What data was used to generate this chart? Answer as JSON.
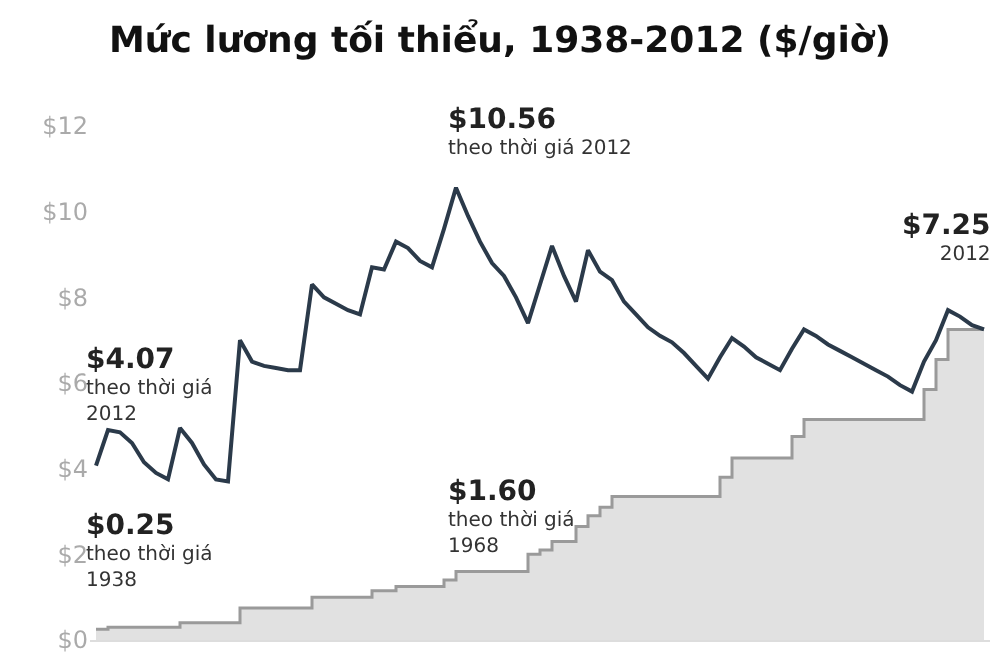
{
  "chart_data": {
    "type": "line",
    "title": "Mức lương tối thiểu, 1938-2012 ($/giờ)",
    "categories": [
      null,
      null,
      null,
      null,
      null,
      null,
      null,
      null,
      null,
      null,
      null,
      null,
      null,
      null,
      null,
      null,
      null,
      null,
      null,
      null,
      null,
      null,
      null,
      null,
      null,
      null,
      null,
      null,
      null,
      null,
      null,
      null,
      null,
      null,
      null,
      null,
      null,
      null,
      null,
      null,
      null,
      null,
      null,
      null,
      null,
      null,
      null,
      null,
      null,
      null,
      null,
      null,
      null,
      null,
      null,
      null,
      null,
      null,
      null,
      null,
      null,
      null,
      null,
      null,
      null,
      null,
      null,
      null,
      null,
      null,
      null,
      null,
      null,
      null,
      null
    ],
    "series": [
      {
        "color": "#2b3a4a",
        "values": [
          4.07,
          4.9,
          4.85,
          4.6,
          4.15,
          3.9,
          3.75,
          4.95,
          4.6,
          4.1,
          3.75,
          3.7,
          7.0,
          6.5,
          6.4,
          6.35,
          6.3,
          6.3,
          8.3,
          8.0,
          7.85,
          7.7,
          7.6,
          8.7,
          8.65,
          9.3,
          9.15,
          8.85,
          8.7,
          9.6,
          10.56,
          9.9,
          9.3,
          8.8,
          8.5,
          8.0,
          7.4,
          8.3,
          9.2,
          8.5,
          7.9,
          9.1,
          8.6,
          8.4,
          7.9,
          7.6,
          7.3,
          7.1,
          6.95,
          6.7,
          6.4,
          6.1,
          6.6,
          7.05,
          6.85,
          6.6,
          6.45,
          6.3,
          6.8,
          7.25,
          7.1,
          6.9,
          6.75,
          6.6,
          6.45,
          6.3,
          6.15,
          5.95,
          5.8,
          6.5,
          7.0,
          7.7,
          7.55,
          7.35,
          7.25
        ]
      },
      {
        "type": "area",
        "color": "#9a9a9a",
        "values": [
          0.25,
          0.3,
          0.3,
          0.3,
          0.3,
          0.3,
          0.3,
          0.4,
          0.4,
          0.4,
          0.4,
          0.4,
          0.75,
          0.75,
          0.75,
          0.75,
          0.75,
          0.75,
          1.0,
          1.0,
          1.0,
          1.0,
          1.0,
          1.15,
          1.15,
          1.25,
          1.25,
          1.25,
          1.25,
          1.4,
          1.6,
          1.6,
          1.6,
          1.6,
          1.6,
          1.6,
          2.0,
          2.1,
          2.3,
          2.3,
          2.65,
          2.9,
          3.1,
          3.35,
          3.35,
          3.35,
          3.35,
          3.35,
          3.35,
          3.35,
          3.35,
          3.35,
          3.8,
          4.25,
          4.25,
          4.25,
          4.25,
          4.25,
          4.75,
          5.15,
          5.15,
          5.15,
          5.15,
          5.15,
          5.15,
          5.15,
          5.15,
          5.15,
          5.15,
          5.85,
          6.55,
          7.25,
          7.25,
          7.25,
          7.25
        ]
      }
    ],
    "ylim": [
      0,
      12
    ],
    "yticks": [
      {
        "value": 0,
        "label": "$0"
      },
      {
        "value": 2,
        "label": "$2"
      },
      {
        "value": 4,
        "label": "$4"
      },
      {
        "value": 6,
        "label": "$6"
      },
      {
        "value": 8,
        "label": "$8"
      },
      {
        "value": 10,
        "label": "$10"
      },
      {
        "value": 12,
        "label": "$12"
      }
    ],
    "annotations": [
      "$4.07\ntheo thời giá\n2012",
      "$0.25\ntheo thời giá\n1938",
      "$10.56\ntheo thời giá 2012",
      "$1.60\ntheo thời giá\n1968",
      "$7.25\n2012"
    ],
    "tick_labels": "y"
  }
}
